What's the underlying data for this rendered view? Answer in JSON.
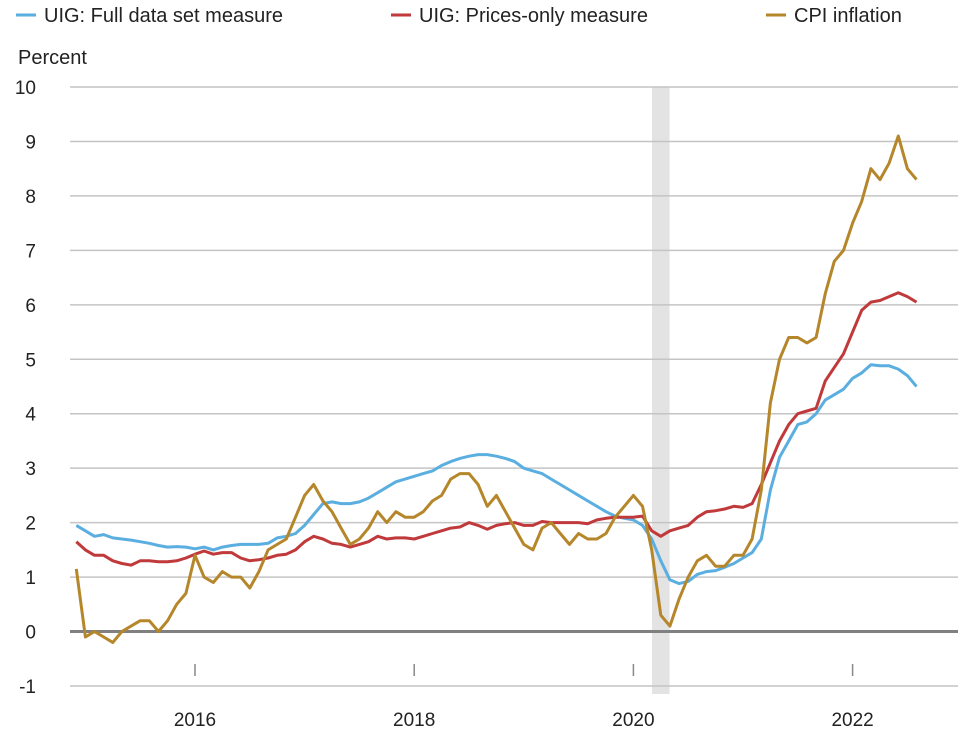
{
  "chart_data": {
    "type": "line",
    "title": "",
    "ylabel": "Percent",
    "xlabel": "",
    "ylim": [
      -1,
      10
    ],
    "yticks": [
      -1,
      0,
      1,
      2,
      3,
      4,
      5,
      6,
      7,
      8,
      9,
      10
    ],
    "xlim": [
      2014.88,
      2023.1
    ],
    "xticks": [
      {
        "value": 2016,
        "label": "2016"
      },
      {
        "value": 2018,
        "label": "2018"
      },
      {
        "value": 2020,
        "label": "2020"
      },
      {
        "value": 2022,
        "label": "2022"
      }
    ],
    "grid": true,
    "legend_position": "top",
    "start": "2014-12",
    "frequency": "monthly",
    "recession": {
      "start": 2020.17,
      "end": 2020.33
    },
    "series": [
      {
        "name": "UIG: Full data set measure",
        "color": "#5aaee0",
        "values": [
          1.95,
          1.85,
          1.75,
          1.78,
          1.72,
          1.7,
          1.68,
          1.65,
          1.62,
          1.58,
          1.55,
          1.56,
          1.55,
          1.52,
          1.55,
          1.5,
          1.55,
          1.58,
          1.6,
          1.6,
          1.6,
          1.62,
          1.72,
          1.75,
          1.8,
          1.95,
          2.15,
          2.35,
          2.38,
          2.35,
          2.35,
          2.38,
          2.45,
          2.55,
          2.65,
          2.75,
          2.8,
          2.85,
          2.9,
          2.95,
          3.05,
          3.12,
          3.18,
          3.22,
          3.25,
          3.25,
          3.22,
          3.18,
          3.12,
          3.0,
          2.95,
          2.9,
          2.8,
          2.7,
          2.6,
          2.5,
          2.4,
          2.3,
          2.2,
          2.12,
          2.08,
          2.05,
          1.95,
          1.7,
          1.3,
          0.95,
          0.88,
          0.92,
          1.05,
          1.1,
          1.12,
          1.18,
          1.25,
          1.35,
          1.45,
          1.7,
          2.6,
          3.2,
          3.5,
          3.8,
          3.85,
          4.0,
          4.25,
          4.35,
          4.45,
          4.65,
          4.75,
          4.9,
          4.88,
          4.88,
          4.82,
          4.7,
          4.5
        ]
      },
      {
        "name": "UIG: Prices-only measure",
        "color": "#c0393b",
        "values": [
          1.65,
          1.5,
          1.4,
          1.4,
          1.3,
          1.25,
          1.22,
          1.3,
          1.3,
          1.28,
          1.28,
          1.3,
          1.35,
          1.42,
          1.48,
          1.42,
          1.45,
          1.45,
          1.35,
          1.3,
          1.32,
          1.35,
          1.4,
          1.42,
          1.5,
          1.65,
          1.75,
          1.7,
          1.62,
          1.6,
          1.55,
          1.6,
          1.65,
          1.75,
          1.7,
          1.72,
          1.72,
          1.7,
          1.75,
          1.8,
          1.85,
          1.9,
          1.92,
          2.0,
          1.95,
          1.88,
          1.95,
          1.98,
          2.0,
          1.95,
          1.95,
          2.02,
          2.0,
          2.0,
          2.0,
          2.0,
          1.98,
          2.05,
          2.08,
          2.1,
          2.1,
          2.1,
          2.12,
          1.85,
          1.75,
          1.85,
          1.9,
          1.95,
          2.1,
          2.2,
          2.22,
          2.25,
          2.3,
          2.28,
          2.35,
          2.7,
          3.1,
          3.5,
          3.8,
          4.0,
          4.05,
          4.1,
          4.6,
          4.85,
          5.1,
          5.5,
          5.9,
          6.05,
          6.08,
          6.15,
          6.22,
          6.15,
          6.05
        ]
      },
      {
        "name": "CPI inflation",
        "color": "#b5862a",
        "values": [
          1.15,
          -0.1,
          0.0,
          -0.1,
          -0.2,
          0.0,
          0.1,
          0.2,
          0.2,
          0.0,
          0.2,
          0.5,
          0.7,
          1.4,
          1.0,
          0.9,
          1.1,
          1.0,
          1.0,
          0.8,
          1.1,
          1.5,
          1.6,
          1.7,
          2.1,
          2.5,
          2.7,
          2.4,
          2.2,
          1.9,
          1.6,
          1.7,
          1.9,
          2.2,
          2.0,
          2.2,
          2.1,
          2.1,
          2.2,
          2.4,
          2.5,
          2.8,
          2.9,
          2.9,
          2.7,
          2.3,
          2.5,
          2.2,
          1.9,
          1.6,
          1.5,
          1.9,
          2.0,
          1.8,
          1.6,
          1.8,
          1.7,
          1.7,
          1.8,
          2.1,
          2.3,
          2.5,
          2.3,
          1.5,
          0.3,
          0.1,
          0.6,
          1.0,
          1.3,
          1.4,
          1.2,
          1.2,
          1.4,
          1.4,
          1.7,
          2.6,
          4.2,
          5.0,
          5.4,
          5.4,
          5.3,
          5.4,
          6.2,
          6.8,
          7.0,
          7.5,
          7.9,
          8.5,
          8.3,
          8.6,
          9.1,
          8.5,
          8.3
        ]
      }
    ]
  }
}
